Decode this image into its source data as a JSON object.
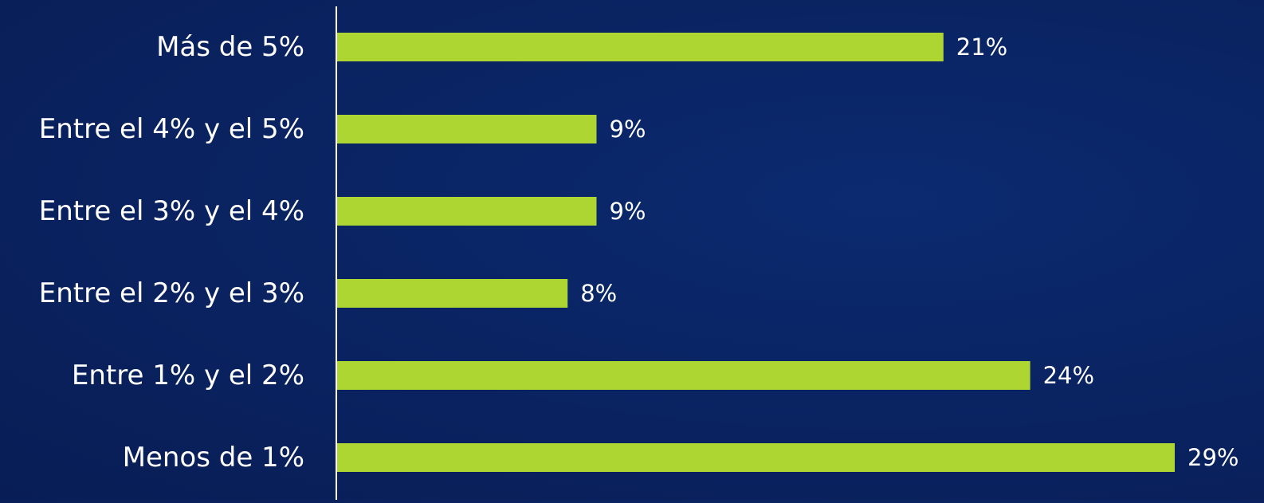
{
  "chart_data": {
    "type": "bar",
    "orientation": "horizontal",
    "categories": [
      "Más de 5%",
      "Entre el 4% y el 5%",
      "Entre el 3% y el 4%",
      "Entre el 2% y el 3%",
      "Entre 1% y el 2%",
      "Menos de 1%"
    ],
    "values": [
      21,
      9,
      9,
      8,
      24,
      29
    ],
    "value_labels": [
      "21%",
      "9%",
      "9%",
      "8%",
      "24%",
      "29%"
    ],
    "title": "",
    "xlabel": "",
    "ylabel": "",
    "xlim": [
      0,
      29
    ],
    "grid": false,
    "legend": "none",
    "colors": {
      "bar": "#add633",
      "axis": "#ffffff",
      "text": "#ffffff",
      "background": "#0a2463"
    }
  }
}
